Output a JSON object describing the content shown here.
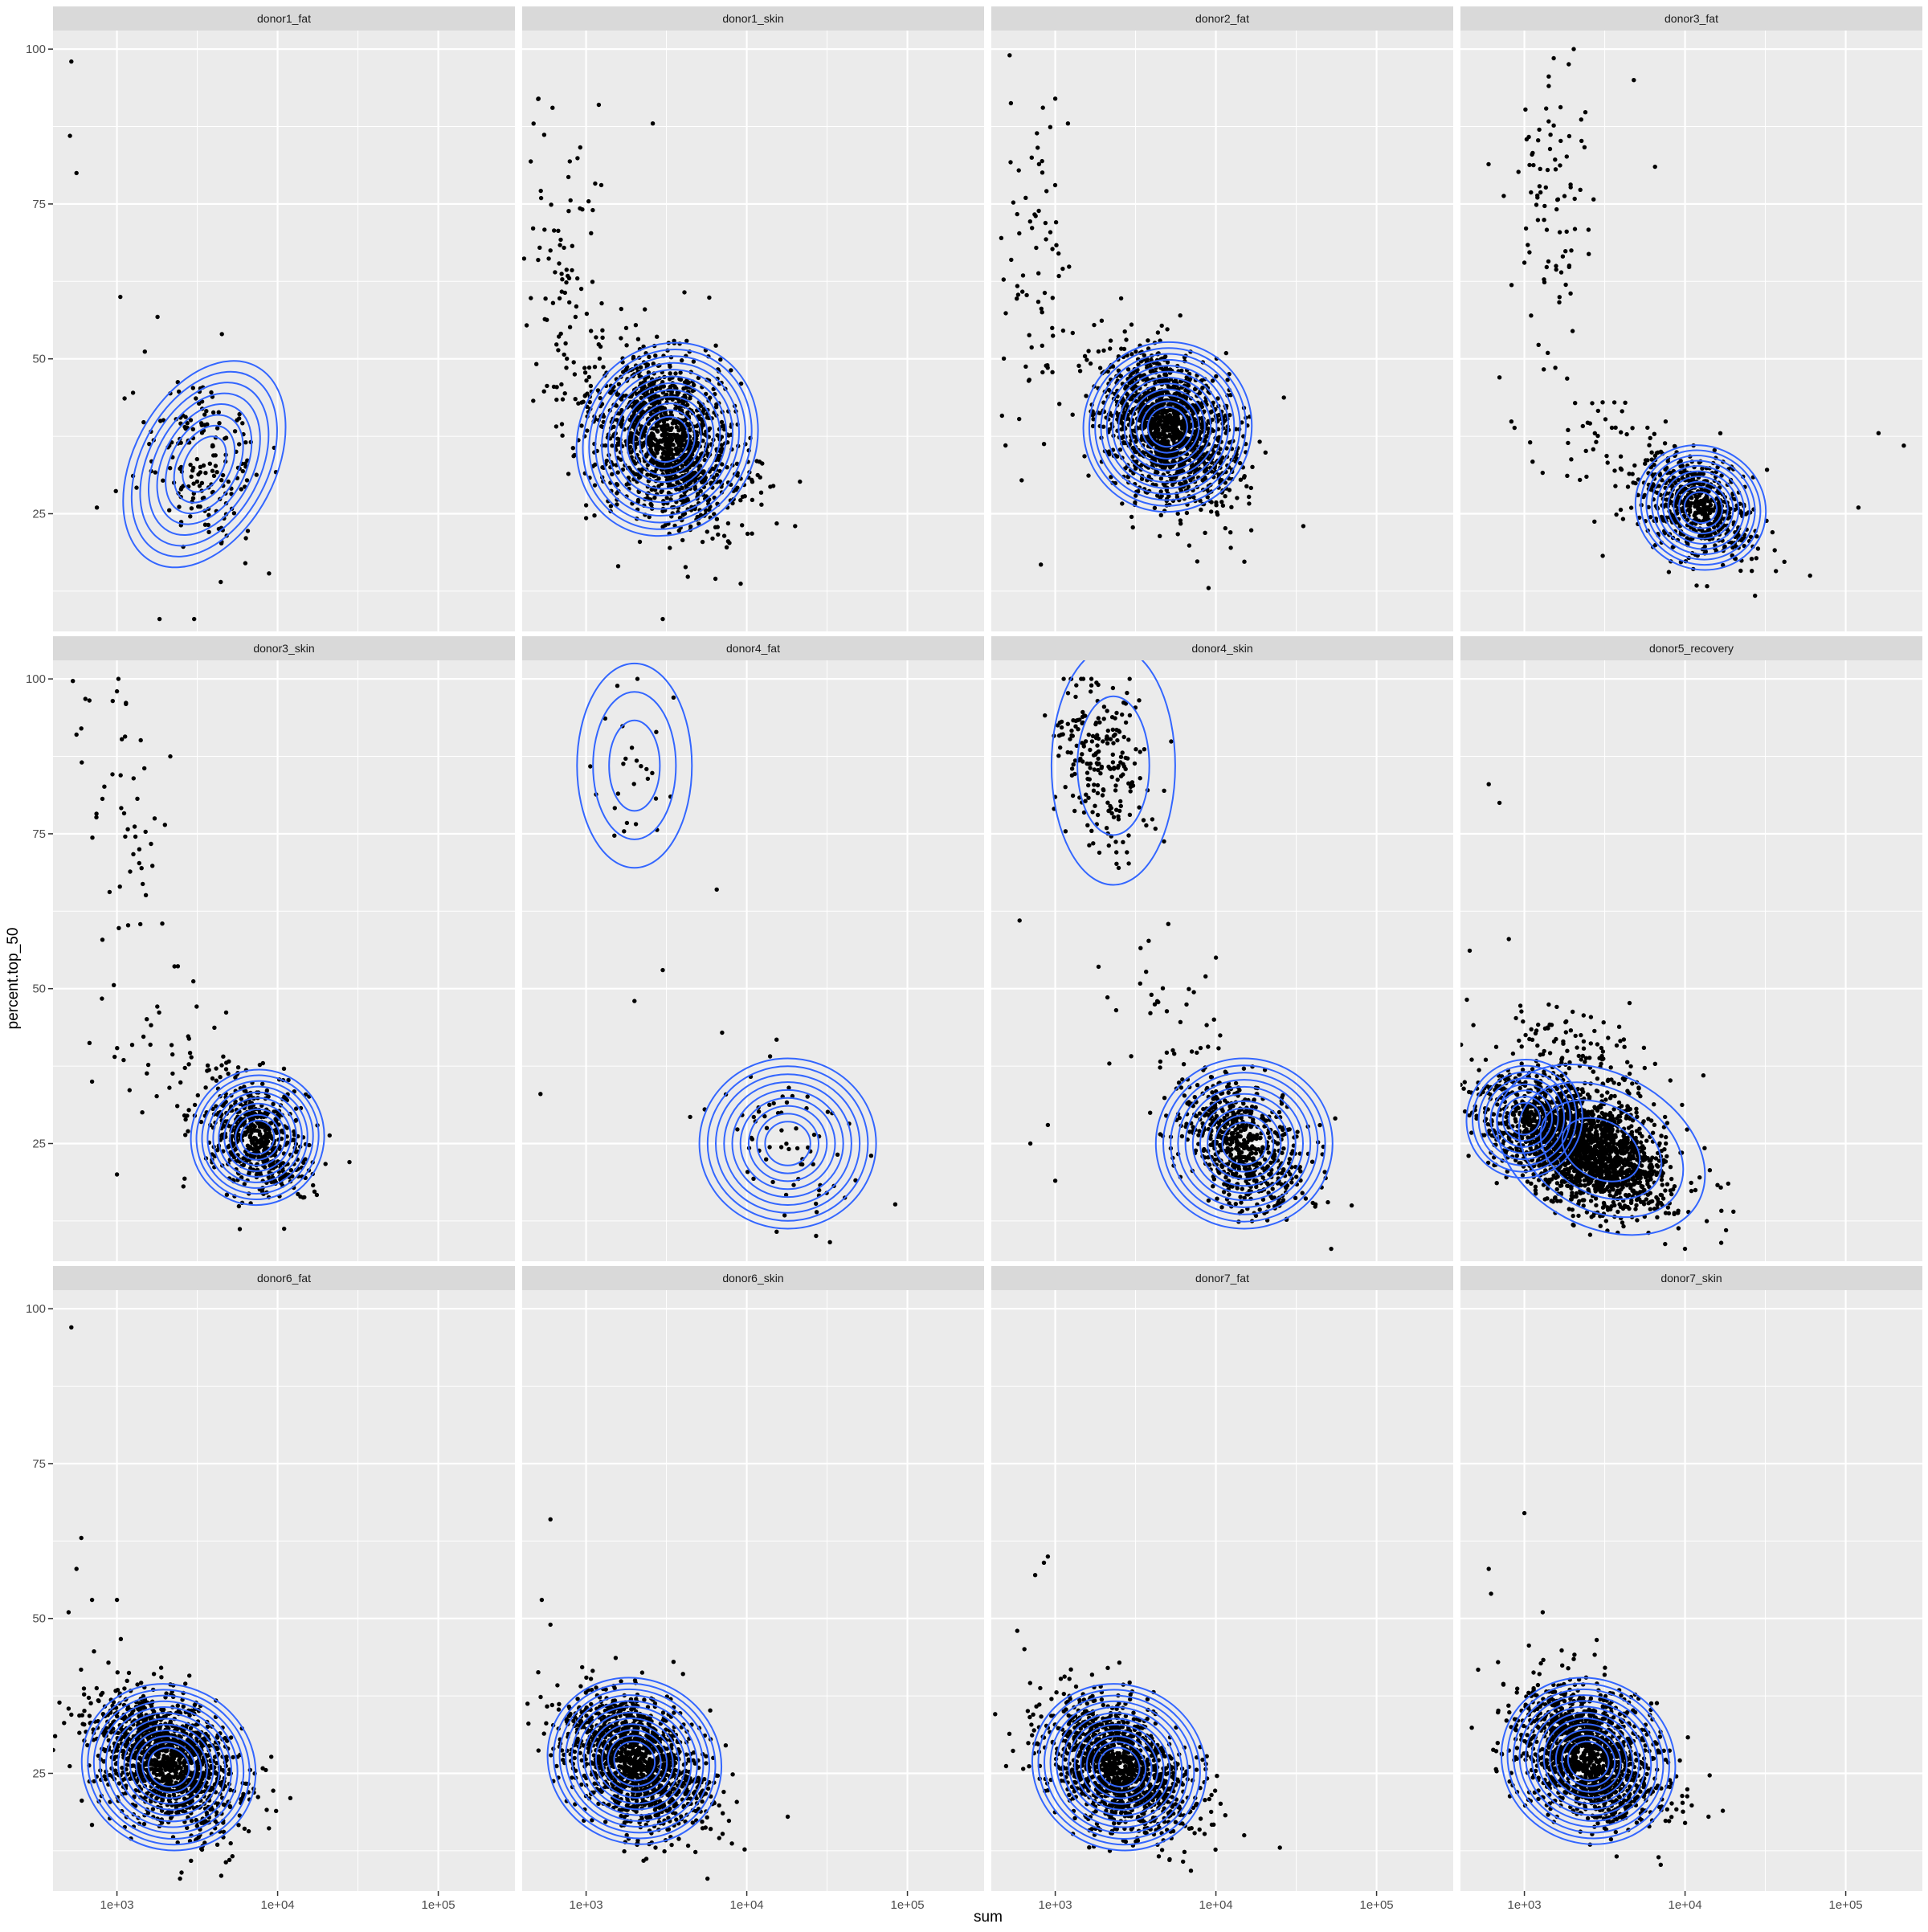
{
  "chart_data": {
    "type": "scatter",
    "overlay": "density-contour",
    "xlabel": "sum",
    "ylabel": "percent.top_50",
    "x_scale": "log10",
    "xlim": [
      400,
      300000
    ],
    "ylim": [
      6,
      103
    ],
    "x_ticks": [
      {
        "value": 1000,
        "label": "1e+03"
      },
      {
        "value": 10000,
        "label": "1e+04"
      },
      {
        "value": 100000,
        "label": "1e+05"
      }
    ],
    "y_ticks": [
      {
        "value": 25,
        "label": "25"
      },
      {
        "value": 50,
        "label": "50"
      },
      {
        "value": 75,
        "label": "75"
      },
      {
        "value": 100,
        "label": "100"
      }
    ],
    "grid": true,
    "colors": {
      "panel_bg": "#ebebeb",
      "strip_bg": "#d9d9d9",
      "grid": "#ffffff",
      "points": "#000000",
      "contours": "#3366ff"
    },
    "facets": [
      {
        "label": "donor1_fat",
        "n_points": 180,
        "clusters": [
          {
            "x": 3500,
            "y": 33,
            "sdx": 0.18,
            "sdy": 7,
            "w": 1
          }
        ],
        "outliers": [
          [
            520,
            98
          ],
          [
            510,
            86
          ],
          [
            560,
            80
          ],
          [
            1050,
            60
          ],
          [
            750,
            26
          ],
          [
            4500,
            54
          ]
        ],
        "contours": [
          {
            "x": 3500,
            "y": 33,
            "sdx": 0.16,
            "sdy": 6.5,
            "n": 8
          }
        ]
      },
      {
        "label": "donor1_skin",
        "n_points": 1400,
        "clusters": [
          {
            "x": 3200,
            "y": 37,
            "sdx": 0.22,
            "sdy": 6.5,
            "w": 0.93
          },
          {
            "x": 750,
            "y": 60,
            "sdx": 0.12,
            "sdy": 14,
            "w": 0.07
          }
        ],
        "outliers": [
          [
            1200,
            91
          ],
          [
            2600,
            88
          ],
          [
            1100,
            74
          ],
          [
            20000,
            23
          ],
          [
            3000,
            8
          ]
        ],
        "contours": [
          {
            "x": 3200,
            "y": 37,
            "sdx": 0.2,
            "sdy": 5.8,
            "n": 12
          }
        ]
      },
      {
        "label": "donor2_fat",
        "n_points": 1500,
        "clusters": [
          {
            "x": 5000,
            "y": 39,
            "sdx": 0.2,
            "sdy": 5.5,
            "w": 0.95
          },
          {
            "x": 750,
            "y": 62,
            "sdx": 0.12,
            "sdy": 16,
            "w": 0.05
          }
        ],
        "outliers": [
          [
            520,
            99
          ],
          [
            1000,
            92
          ],
          [
            1200,
            88
          ],
          [
            6000,
            57
          ],
          [
            35000,
            23
          ],
          [
            9000,
            13
          ]
        ],
        "contours": [
          {
            "x": 5000,
            "y": 39,
            "sdx": 0.19,
            "sdy": 5,
            "n": 12
          }
        ]
      },
      {
        "label": "donor3_fat",
        "n_points": 700,
        "clusters": [
          {
            "x": 12500,
            "y": 26,
            "sdx": 0.17,
            "sdy": 4,
            "w": 0.78
          },
          {
            "x": 1400,
            "y": 78,
            "sdx": 0.12,
            "sdy": 12,
            "w": 0.1
          },
          {
            "x": 4000,
            "y": 34,
            "sdx": 0.25,
            "sdy": 6,
            "w": 0.12
          }
        ],
        "outliers": [
          [
            700,
            47
          ],
          [
            4800,
            95
          ],
          [
            6500,
            81
          ],
          [
            230000,
            36
          ],
          [
            160000,
            38
          ],
          [
            120000,
            26
          ],
          [
            60000,
            15
          ],
          [
            35000,
            22
          ]
        ],
        "contours": [
          {
            "x": 12500,
            "y": 26,
            "sdx": 0.15,
            "sdy": 3.6,
            "n": 10
          }
        ]
      },
      {
        "label": "donor3_skin",
        "n_points": 650,
        "clusters": [
          {
            "x": 7500,
            "y": 26,
            "sdx": 0.16,
            "sdy": 4.5,
            "w": 0.86
          },
          {
            "x": 1100,
            "y": 78,
            "sdx": 0.13,
            "sdy": 12,
            "w": 0.08
          },
          {
            "x": 2000,
            "y": 40,
            "sdx": 0.2,
            "sdy": 7,
            "w": 0.06
          }
        ],
        "outliers": [
          [
            560,
            91
          ],
          [
            600,
            92
          ],
          [
            1000,
            98
          ],
          [
            700,
            35
          ],
          [
            28000,
            22
          ],
          [
            1000,
            20
          ]
        ],
        "contours": [
          {
            "x": 7500,
            "y": 26,
            "sdx": 0.15,
            "sdy": 4,
            "n": 10
          }
        ]
      },
      {
        "label": "donor4_fat",
        "n_points": 95,
        "clusters": [
          {
            "x": 1800,
            "y": 87,
            "sdx": 0.15,
            "sdy": 6,
            "w": 0.27
          },
          {
            "x": 18000,
            "y": 25,
            "sdx": 0.22,
            "sdy": 6,
            "w": 0.73
          }
        ],
        "outliers": [
          [
            520,
            33
          ],
          [
            6500,
            66
          ],
          [
            2000,
            48
          ],
          [
            3500,
            97
          ],
          [
            3000,
            53
          ]
        ],
        "contours": [
          {
            "x": 2000,
            "y": 86,
            "sdx": 0.13,
            "sdy": 6,
            "n": 3
          },
          {
            "x": 18000,
            "y": 25,
            "sdx": 0.2,
            "sdy": 5,
            "n": 9
          }
        ]
      },
      {
        "label": "donor4_skin",
        "n_points": 900,
        "clusters": [
          {
            "x": 15000,
            "y": 25,
            "sdx": 0.2,
            "sdy": 5,
            "w": 0.7
          },
          {
            "x": 2000,
            "y": 86,
            "sdx": 0.15,
            "sdy": 7,
            "w": 0.26
          },
          {
            "x": 5000,
            "y": 45,
            "sdx": 0.2,
            "sdy": 6,
            "w": 0.04
          }
        ],
        "outliers": [
          [
            600,
            61
          ],
          [
            700,
            25
          ],
          [
            900,
            28
          ],
          [
            1000,
            19
          ],
          [
            70000,
            15
          ],
          [
            10000,
            55
          ]
        ],
        "contours": [
          {
            "x": 2300,
            "y": 86,
            "sdx": 0.14,
            "sdy": 7,
            "n": 2
          },
          {
            "x": 15000,
            "y": 25,
            "sdx": 0.2,
            "sdy": 5,
            "n": 10
          }
        ]
      },
      {
        "label": "donor5_recovery",
        "n_points": 2200,
        "clusters": [
          {
            "x": 2200,
            "y": 25,
            "sdx": 0.27,
            "sdy": 4.5,
            "w": 0.95
          },
          {
            "x": 2000,
            "y": 40,
            "sdx": 0.25,
            "sdy": 4,
            "w": 0.05
          }
        ],
        "outliers": [
          [
            600,
            83
          ],
          [
            700,
            80
          ],
          [
            800,
            58
          ],
          [
            13000,
            36
          ],
          [
            18000,
            11
          ],
          [
            20000,
            14
          ]
        ],
        "contours": [
          {
            "x": 1000,
            "y": 29,
            "sdx": 0.13,
            "sdy": 3.5,
            "n": 8
          },
          {
            "x": 3000,
            "y": 24,
            "sdx": 0.25,
            "sdy": 4.5,
            "n": 4
          }
        ]
      },
      {
        "label": "donor6_fat",
        "n_points": 1300,
        "clusters": [
          {
            "x": 2000,
            "y": 27,
            "sdx": 0.22,
            "sdy": 5,
            "w": 1
          }
        ],
        "outliers": [
          [
            520,
            97
          ],
          [
            600,
            63
          ],
          [
            560,
            58
          ],
          [
            700,
            53
          ],
          [
            1000,
            53
          ],
          [
            500,
            51
          ],
          [
            12000,
            21
          ]
        ],
        "contours": [
          {
            "x": 2100,
            "y": 26,
            "sdx": 0.2,
            "sdy": 4.8,
            "n": 12
          }
        ]
      },
      {
        "label": "donor6_skin",
        "n_points": 1300,
        "clusters": [
          {
            "x": 2000,
            "y": 27,
            "sdx": 0.22,
            "sdy": 5,
            "w": 1
          }
        ],
        "outliers": [
          [
            600,
            66
          ],
          [
            530,
            53
          ],
          [
            600,
            49
          ],
          [
            18000,
            18
          ],
          [
            3500,
            43
          ]
        ],
        "contours": [
          {
            "x": 2000,
            "y": 27,
            "sdx": 0.2,
            "sdy": 4.8,
            "n": 12
          }
        ]
      },
      {
        "label": "donor7_fat",
        "n_points": 1300,
        "clusters": [
          {
            "x": 2500,
            "y": 26,
            "sdx": 0.22,
            "sdy": 5,
            "w": 1
          }
        ],
        "outliers": [
          [
            580,
            48
          ],
          [
            750,
            57
          ],
          [
            850,
            59
          ],
          [
            900,
            60
          ],
          [
            25000,
            13
          ],
          [
            15000,
            15
          ]
        ],
        "contours": [
          {
            "x": 2500,
            "y": 26,
            "sdx": 0.2,
            "sdy": 4.8,
            "n": 12
          }
        ]
      },
      {
        "label": "donor7_skin",
        "n_points": 1400,
        "clusters": [
          {
            "x": 2500,
            "y": 28,
            "sdx": 0.22,
            "sdy": 5,
            "w": 1
          }
        ],
        "outliers": [
          [
            1000,
            67
          ],
          [
            600,
            58
          ],
          [
            620,
            54
          ],
          [
            1300,
            51
          ],
          [
            14000,
            18
          ],
          [
            10000,
            17
          ]
        ],
        "contours": [
          {
            "x": 2500,
            "y": 27,
            "sdx": 0.2,
            "sdy": 4.8,
            "n": 12
          }
        ]
      }
    ]
  }
}
